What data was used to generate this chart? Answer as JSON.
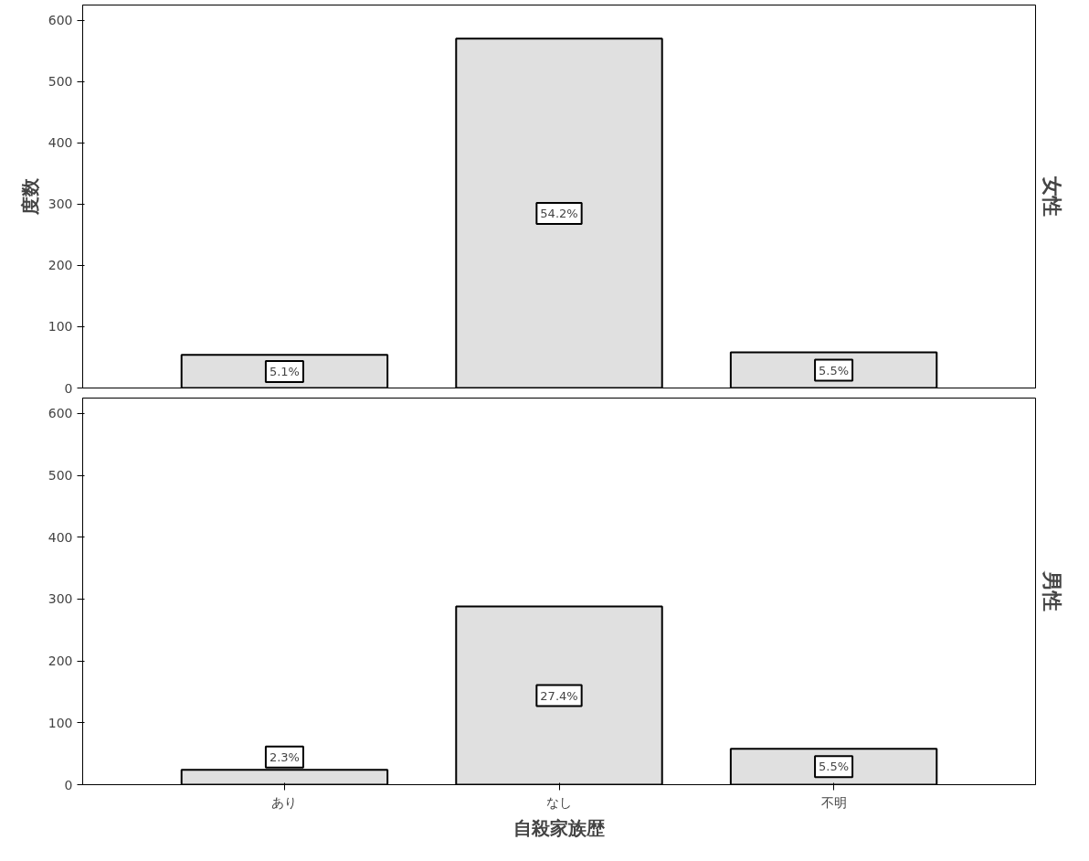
{
  "chart_data": [
    {
      "type": "bar",
      "title": "女性",
      "ylabel": "度数",
      "categories": [
        null,
        null,
        null
      ],
      "values": [
        54,
        570,
        58
      ],
      "color": "#e0e0e0",
      "ylim": [
        0,
        625
      ],
      "yticks": [
        0,
        100,
        200,
        300,
        400,
        500,
        600
      ],
      "tick_labels": "y",
      "grid": false,
      "legend": false,
      "annotations": [
        "5.1%",
        "54.2%",
        "5.5%"
      ]
    },
    {
      "type": "bar",
      "title": "男性",
      "xlabel": "自殺家族歴",
      "categories": [
        "あり",
        "なし",
        "不明"
      ],
      "values": [
        24,
        288,
        58
      ],
      "color": "#e0e0e0",
      "ylim": [
        0,
        625
      ],
      "yticks": [
        0,
        100,
        200,
        300,
        400,
        500,
        600
      ],
      "grid": false,
      "legend": false,
      "annotations": [
        "2.3%",
        "27.4%",
        "5.5%"
      ]
    }
  ]
}
